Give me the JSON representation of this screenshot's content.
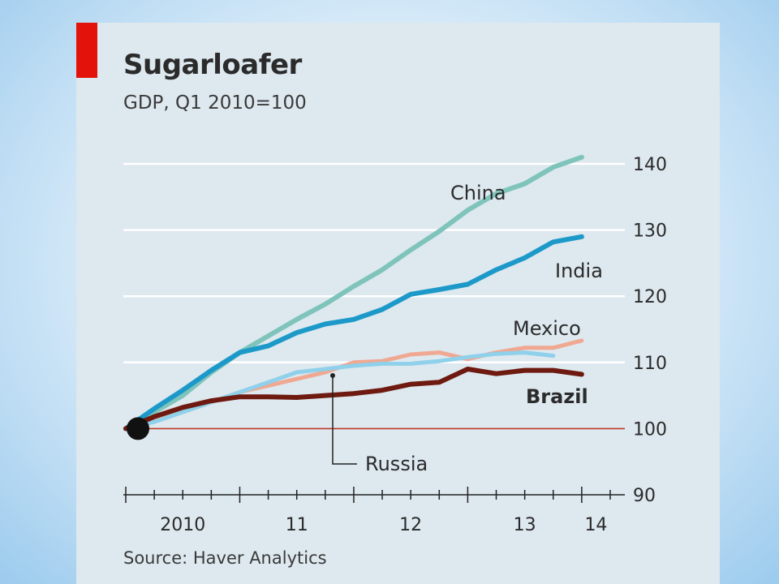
{
  "chart_data": {
    "type": "line",
    "title": "Sugarloafer",
    "subtitle": "GDP, Q1 2010=100",
    "source": "Source: Haver Analytics",
    "ylim": [
      90,
      140
    ],
    "yticks": [
      90,
      100,
      110,
      120,
      130,
      140
    ],
    "xlim": [
      2010.0,
      2014.25
    ],
    "xticks": [
      {
        "label": "2010",
        "x": 2010.5
      },
      {
        "label": "11",
        "x": 2011.5
      },
      {
        "label": "12",
        "x": 2012.5
      },
      {
        "label": "13",
        "x": 2013.5
      },
      {
        "label": "14",
        "x": 2014.125
      }
    ],
    "reference_line": 100,
    "grid": "horizontal",
    "series": [
      {
        "name": "China",
        "color": "#7fc4bb",
        "x": [
          2010.0,
          2010.25,
          2010.5,
          2010.75,
          2011.0,
          2011.25,
          2011.5,
          2011.75,
          2012.0,
          2012.25,
          2012.5,
          2012.75,
          2013.0,
          2013.25,
          2013.5,
          2013.75,
          2014.0
        ],
        "values": [
          100,
          102.5,
          105,
          108.5,
          111.5,
          114,
          116.5,
          118.8,
          121.5,
          124,
          127,
          129.8,
          133,
          135.5,
          137,
          139.5,
          141
        ]
      },
      {
        "name": "India",
        "color": "#1c99c9",
        "x": [
          2010.0,
          2010.25,
          2010.5,
          2010.75,
          2011.0,
          2011.25,
          2011.5,
          2011.75,
          2012.0,
          2012.25,
          2012.5,
          2012.75,
          2013.0,
          2013.25,
          2013.5,
          2013.75,
          2014.0
        ],
        "values": [
          100,
          103,
          105.8,
          108.8,
          111.5,
          112.5,
          114.5,
          115.8,
          116.5,
          118,
          120.3,
          121,
          121.8,
          124,
          125.8,
          128.2,
          129
        ]
      },
      {
        "name": "Mexico",
        "color": "#f0a892",
        "x": [
          2010.0,
          2010.25,
          2010.5,
          2010.75,
          2011.0,
          2011.25,
          2011.5,
          2011.75,
          2012.0,
          2012.25,
          2012.5,
          2012.75,
          2013.0,
          2013.25,
          2013.5,
          2013.75,
          2014.0
        ],
        "values": [
          100,
          101.5,
          102.5,
          104,
          105.5,
          106.5,
          107.5,
          108.5,
          110,
          110.2,
          111.2,
          111.5,
          110.5,
          111.5,
          112.2,
          112.2,
          113.3
        ]
      },
      {
        "name": "Russia",
        "color": "#8fd0ea",
        "x": [
          2010.0,
          2010.25,
          2010.5,
          2010.75,
          2011.0,
          2011.25,
          2011.5,
          2011.75,
          2012.0,
          2012.25,
          2012.5,
          2012.75,
          2013.0,
          2013.25,
          2013.5,
          2013.75
        ],
        "values": [
          100,
          101,
          102.5,
          104,
          105.5,
          107,
          108.5,
          109,
          109.5,
          109.8,
          109.8,
          110.2,
          110.8,
          111.3,
          111.5,
          111
        ]
      },
      {
        "name": "Brazil",
        "color": "#6e1a10",
        "x": [
          2010.0,
          2010.25,
          2010.5,
          2010.75,
          2011.0,
          2011.25,
          2011.5,
          2011.75,
          2012.0,
          2012.25,
          2012.5,
          2012.75,
          2013.0,
          2013.25,
          2013.5,
          2013.75,
          2014.0
        ],
        "values": [
          100,
          101.8,
          103.2,
          104.2,
          104.8,
          104.8,
          104.7,
          105,
          105.3,
          105.8,
          106.7,
          107,
          109,
          108.3,
          108.8,
          108.8,
          108.2
        ]
      }
    ],
    "labels": {
      "china": "China",
      "india": "India",
      "mexico": "Mexico",
      "russia": "Russia",
      "brazil": "Brazil"
    }
  },
  "colors": {
    "accent_red": "#e3120b",
    "reference_line": "#c0392b",
    "start_marker": "#111111"
  }
}
